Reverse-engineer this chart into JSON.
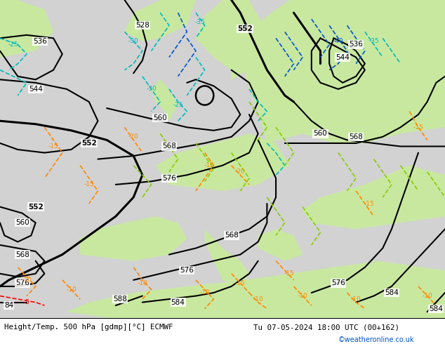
{
  "title_left": "Height/Temp. 500 hPa [gdmp][°C] ECMWF",
  "title_right": "Tu 07-05-2024 18:00 UTC (00+162)",
  "watermark": "©weatheronline.co.uk",
  "bg_gray": "#d2d2d2",
  "bg_green": "#c8e8a0",
  "z500_color": "#000000",
  "temp_orange": "#ff8800",
  "temp_red": "#ff0000",
  "temp_cyan": "#00bbbb",
  "temp_blue": "#0055cc",
  "z850_lime": "#88cc00",
  "z850_blue": "#0077dd",
  "figsize": [
    6.34,
    4.9
  ],
  "dpi": 100
}
